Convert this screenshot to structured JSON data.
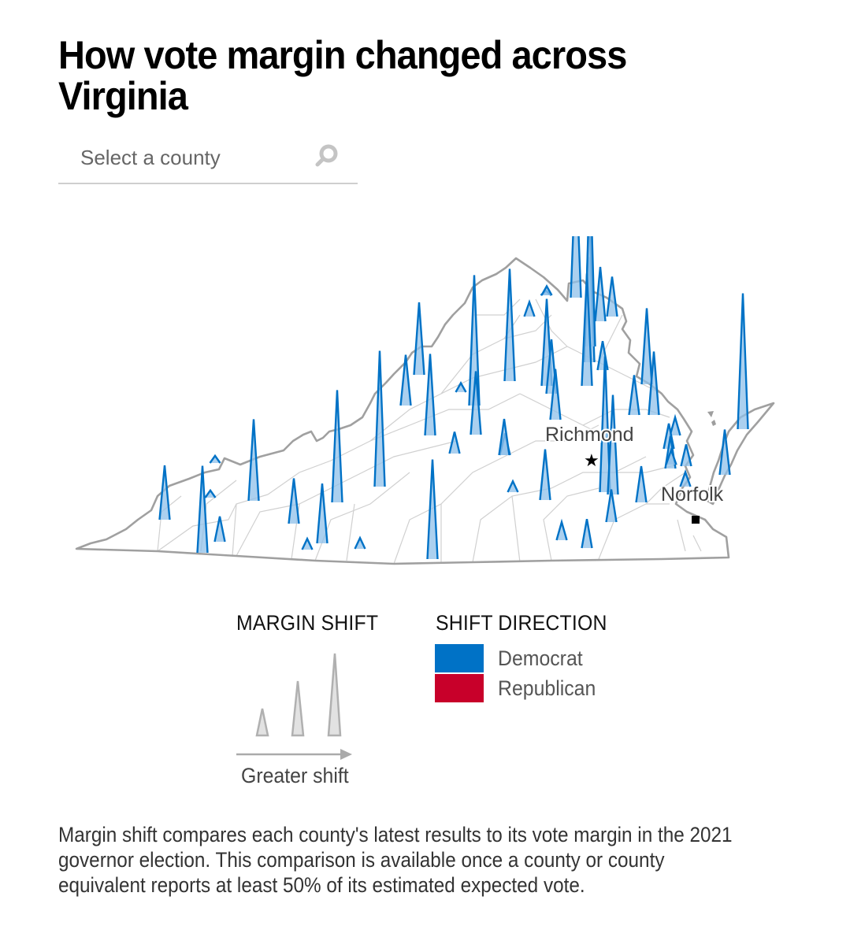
{
  "title": "How vote margin changed across Virginia",
  "search": {
    "placeholder": "Select a county",
    "icon": "search-icon"
  },
  "map": {
    "region": "Virginia",
    "cities": [
      {
        "name": "Richmond",
        "marker": "star"
      },
      {
        "name": "Norfolk",
        "marker": "square"
      }
    ],
    "colors": {
      "democrat": "#0072c6",
      "republican": "#c8002a",
      "spike_fill": "#8fc0ea",
      "state_outline": "#9e9e9e",
      "county_lines": "#d0d0d0"
    },
    "spikes_note": "All visible county spikes indicate a shift toward Democrat; height encodes relative margin shift (0-1 scale).",
    "spikes": [
      {
        "party": "democrat",
        "shift": 0.3
      },
      {
        "party": "democrat",
        "shift": 0.48
      },
      {
        "party": "democrat",
        "shift": 0.14
      },
      {
        "party": "democrat",
        "shift": 0.04
      },
      {
        "party": "democrat",
        "shift": 0.04
      },
      {
        "party": "democrat",
        "shift": 0.45
      },
      {
        "party": "democrat",
        "shift": 0.25
      },
      {
        "party": "democrat",
        "shift": 0.33
      },
      {
        "party": "democrat",
        "shift": 0.06
      },
      {
        "party": "democrat",
        "shift": 0.62
      },
      {
        "party": "democrat",
        "shift": 0.06
      },
      {
        "party": "democrat",
        "shift": 0.75
      },
      {
        "party": "democrat",
        "shift": 0.28
      },
      {
        "party": "democrat",
        "shift": 0.4
      },
      {
        "party": "democrat",
        "shift": 0.45
      },
      {
        "party": "democrat",
        "shift": 0.12
      },
      {
        "party": "democrat",
        "shift": 0.55
      },
      {
        "party": "democrat",
        "shift": 0.05
      },
      {
        "party": "democrat",
        "shift": 0.72
      },
      {
        "party": "democrat",
        "shift": 0.35
      },
      {
        "party": "democrat",
        "shift": 0.12
      },
      {
        "party": "democrat",
        "shift": 0.06
      },
      {
        "party": "democrat",
        "shift": 0.62
      },
      {
        "party": "democrat",
        "shift": 0.28
      },
      {
        "party": "democrat",
        "shift": 0.1
      },
      {
        "party": "democrat",
        "shift": 0.16
      },
      {
        "party": "democrat",
        "shift": 0.02
      },
      {
        "party": "democrat",
        "shift": 0.75
      },
      {
        "party": "democrat",
        "shift": 0.45
      },
      {
        "party": "democrat",
        "shift": 0.3
      },
      {
        "party": "democrat",
        "shift": 0.22
      },
      {
        "party": "democrat",
        "shift": 0.16
      },
      {
        "party": "democrat",
        "shift": 0.85
      },
      {
        "party": "democrat",
        "shift": 1.0
      },
      {
        "party": "democrat",
        "shift": 0.75
      },
      {
        "party": "democrat",
        "shift": 0.55
      },
      {
        "party": "democrat",
        "shift": 0.62
      },
      {
        "party": "democrat",
        "shift": 0.48
      },
      {
        "party": "democrat",
        "shift": 0.3
      },
      {
        "party": "democrat",
        "shift": 0.28
      },
      {
        "party": "democrat",
        "shift": 0.18
      },
      {
        "party": "democrat",
        "shift": 0.2
      },
      {
        "party": "democrat",
        "shift": 0.08
      },
      {
        "party": "democrat",
        "shift": 0.22
      },
      {
        "party": "democrat",
        "shift": 0.1
      },
      {
        "party": "democrat",
        "shift": 0.42
      },
      {
        "party": "democrat",
        "shift": 0.35
      },
      {
        "party": "democrat",
        "shift": 0.08
      },
      {
        "party": "democrat",
        "shift": 0.14
      },
      {
        "party": "democrat",
        "shift": 0.18
      },
      {
        "party": "democrat",
        "shift": 0.08
      },
      {
        "party": "democrat",
        "shift": 0.12
      },
      {
        "party": "democrat",
        "shift": 0.25
      },
      {
        "party": "democrat",
        "shift": 0.75
      },
      {
        "party": "democrat",
        "shift": 0.05
      },
      {
        "party": "democrat",
        "shift": 0.2
      }
    ]
  },
  "legend": {
    "margin_shift": {
      "title": "MARGIN SHIFT",
      "caption": "Greater shift",
      "example_levels": [
        "small",
        "medium",
        "large"
      ]
    },
    "shift_direction": {
      "title": "SHIFT DIRECTION",
      "items": [
        {
          "label": "Democrat",
          "color": "#0072c6"
        },
        {
          "label": "Republican",
          "color": "#c8002a"
        }
      ]
    }
  },
  "note": "Margin shift compares each county's latest results to its vote margin in the 2021 governor election. This comparison is available once a county or county equivalent reports at least 50% of its estimated expected vote."
}
